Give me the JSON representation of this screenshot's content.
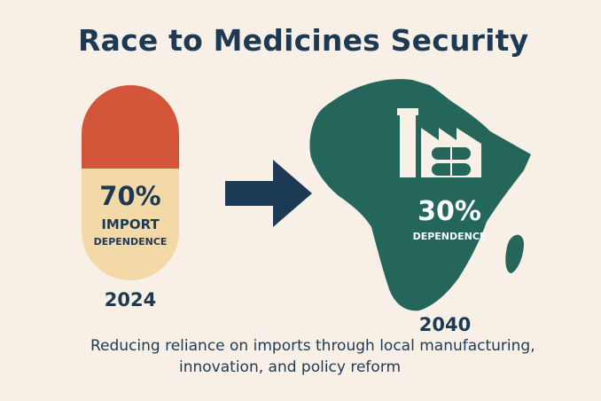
{
  "title": "Race to Medicines Security",
  "left": {
    "percent": "70%",
    "label_line1": "IMPORT",
    "label_line2": "DEPENDENCE",
    "year": "2024",
    "icon": "pill-capsule-icon",
    "top_color": "#d4563a",
    "bottom_color": "#f4d9a8"
  },
  "arrow": {
    "icon": "arrow-right-icon",
    "color": "#1d3a55"
  },
  "right": {
    "percent": "30%",
    "label": "DEPENDENCE",
    "year": "2040",
    "map_icon": "africa-map-icon",
    "factory_icon": "factory-icon",
    "map_color": "#24665a"
  },
  "caption": {
    "line1": "Reducing reliance on imports through local manufacturing,",
    "line2": "innovation, and policy reform"
  }
}
